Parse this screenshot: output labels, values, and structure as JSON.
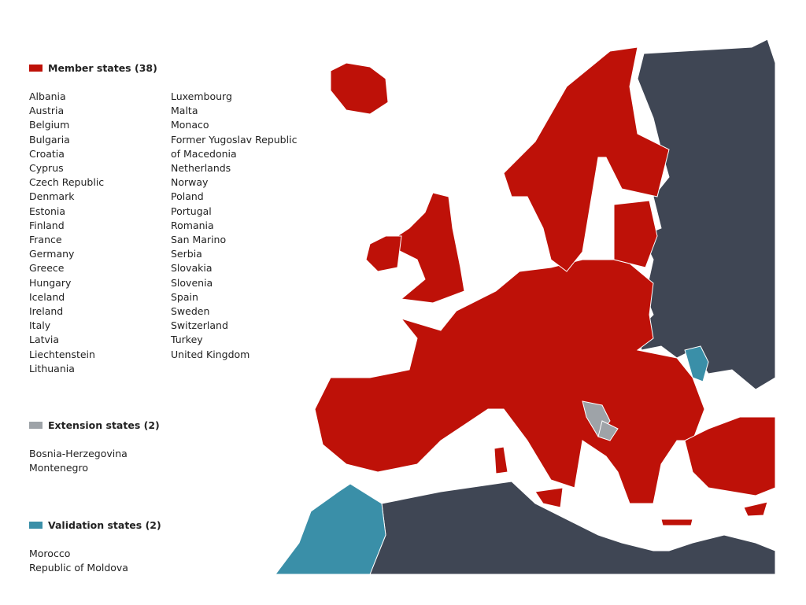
{
  "colors": {
    "member": "#be1108",
    "extension": "#9ea3a8",
    "validation": "#3a8fa8",
    "other": "#3f4654"
  },
  "legend": {
    "member": {
      "title": "Member states (38)",
      "col1": [
        "Albania",
        "Austria",
        "Belgium",
        "Bulgaria",
        "Croatia",
        "Cyprus",
        "Czech Republic",
        "Denmark",
        "Estonia",
        "Finland",
        "France",
        "Germany",
        "Greece",
        "Hungary",
        "Iceland",
        "Ireland",
        "Italy",
        "Latvia",
        "Liechtenstein",
        "Lithuania"
      ],
      "col2": [
        "Luxembourg",
        "Malta",
        "Monaco",
        "Former Yugoslav Republic",
        "of Macedonia",
        "Netherlands",
        "Norway",
        "Poland",
        "Portugal",
        "Romania",
        "San Marino",
        "Serbia",
        "Slovakia",
        "Slovenia",
        "Spain",
        "Sweden",
        "Switzerland",
        "Turkey",
        "United Kingdom"
      ]
    },
    "extension": {
      "title": "Extension states (2)",
      "items": [
        "Bosnia-Herzegovina",
        "Montenegro"
      ]
    },
    "validation": {
      "title": "Validation states (2)",
      "items": [
        "Morocco",
        "Republic of Moldova"
      ]
    }
  }
}
